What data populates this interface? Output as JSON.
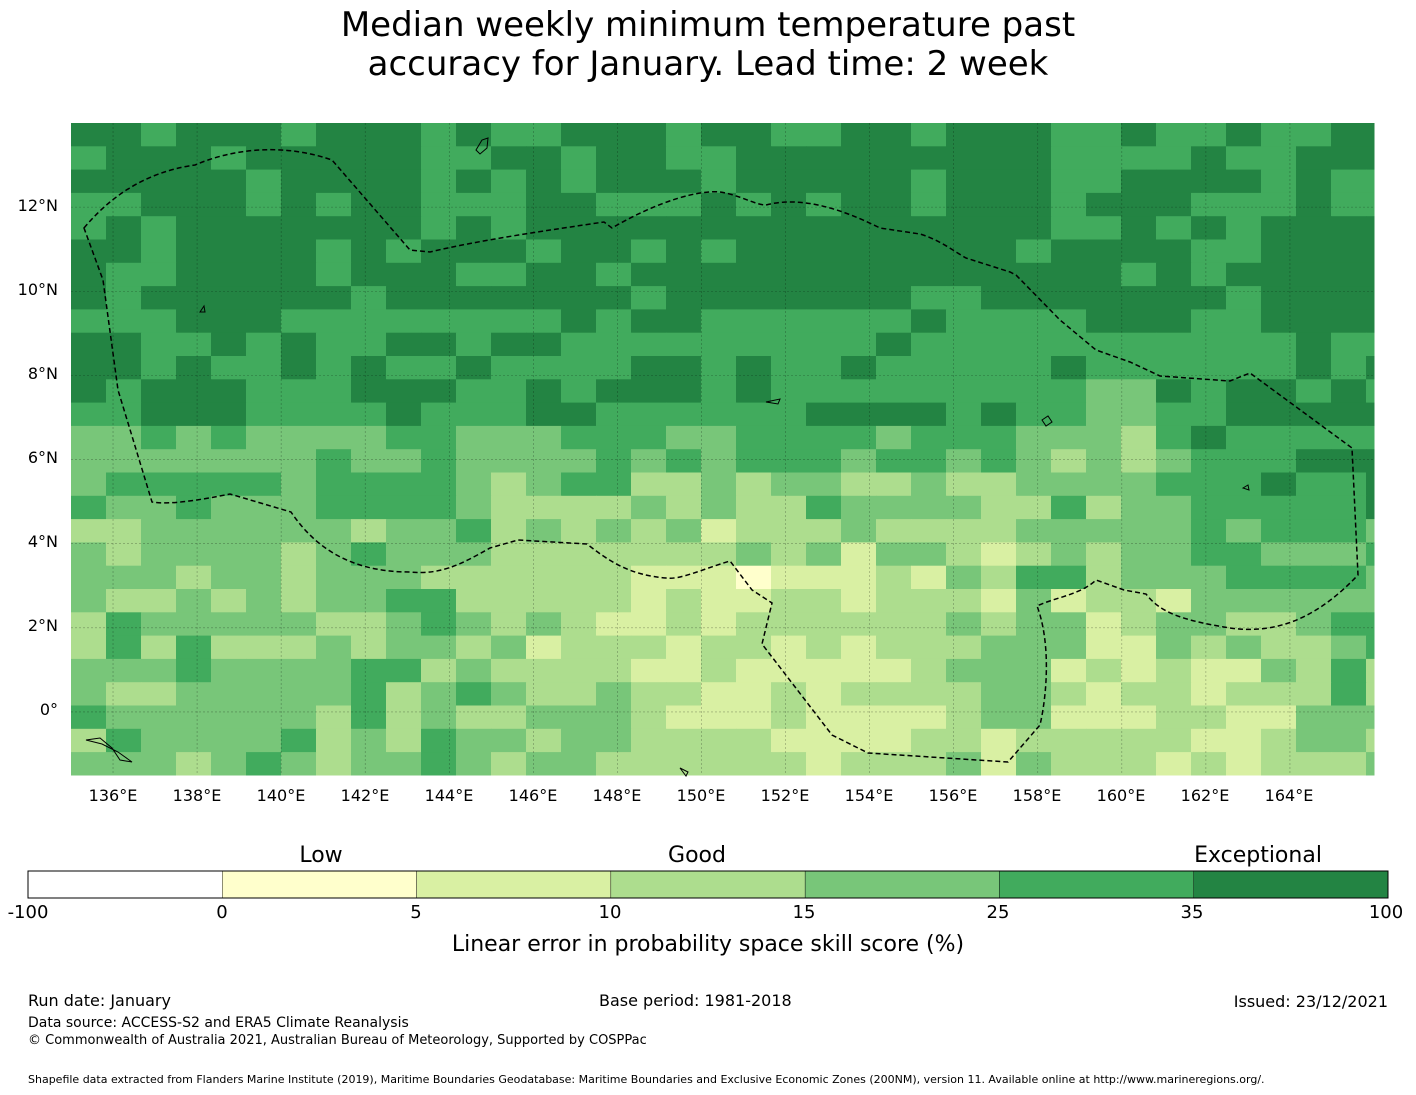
{
  "title": {
    "line1": "Median weekly minimum temperature past",
    "line2": "accuracy for January. Lead time: 2 week"
  },
  "map": {
    "lon_ticks": [
      "136°E",
      "138°E",
      "140°E",
      "142°E",
      "144°E",
      "146°E",
      "148°E",
      "150°E",
      "152°E",
      "154°E",
      "156°E",
      "158°E",
      "160°E",
      "162°E",
      "164°E"
    ],
    "lat_ticks": [
      "12°N",
      "10°N",
      "8°N",
      "6°N",
      "4°N",
      "2°N",
      "0°"
    ],
    "lon_range": [
      135,
      166
    ],
    "lat_range": [
      -1.5,
      14
    ]
  },
  "colorbar": {
    "categories": [
      "Low",
      "Good",
      "Exceptional"
    ],
    "ticks": [
      "-100",
      "0",
      "5",
      "10",
      "15",
      "25",
      "35",
      "100"
    ],
    "colors": [
      "#ffffff",
      "#ffffcc",
      "#d9f0a3",
      "#addd8e",
      "#78c679",
      "#41ab5d",
      "#238443"
    ],
    "label": "Linear error in probability space skill score (%)"
  },
  "footer": {
    "run_date": "Run date: January",
    "base_period": "Base period: 1981-2018",
    "issued": "Issued: 23/12/2021",
    "data_source": "Data source: ACCESS-S2 and ERA5 Climate Reanalysis",
    "copyright": "© Commonwealth of Australia 2021, Australian Bureau of Meteorology, Supported by COSPPac",
    "shapefile": "Shapefile data extracted from Flanders Marine Institute (2019), Maritime Boundaries Geodatabase: Maritime Boundaries and Exclusive Economic Zones (200NM), version 11. Available online at http://www.marineregions.org/."
  }
}
